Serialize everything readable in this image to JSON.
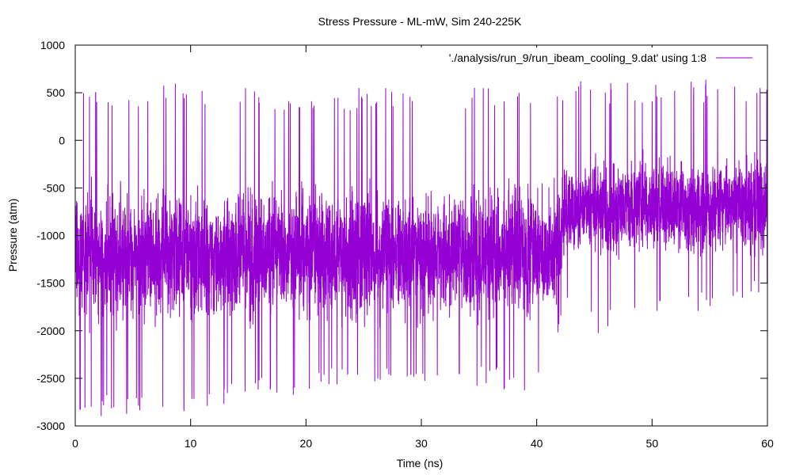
{
  "chart_data": {
    "type": "line",
    "title": "Stress Pressure - ML-mW, Sim 240-225K",
    "xlabel": "Time (ns)",
    "ylabel": "Pressure (atm)",
    "xlim": [
      0,
      60
    ],
    "ylim": [
      -3000,
      1000
    ],
    "x_ticks": [
      0,
      10,
      20,
      30,
      40,
      50,
      60
    ],
    "y_ticks": [
      -3000,
      -2500,
      -2000,
      -1500,
      -1000,
      -500,
      0,
      500,
      1000
    ],
    "grid": false,
    "legend_position": "top-right",
    "series": [
      {
        "name": "'./analysis/run_9/run_ibeam_cooling_9.dat' using 1:8",
        "color": "#9400d3",
        "x": [
          0,
          5,
          10,
          15,
          20,
          25,
          30,
          35,
          40,
          41.5,
          42.5,
          43.5,
          45,
          50,
          55,
          60
        ],
        "mean": [
          -1200,
          -1200,
          -1200,
          -1200,
          -1200,
          -1200,
          -1200,
          -1200,
          -1200,
          -1150,
          -900,
          -880,
          -880,
          -880,
          -880,
          -880
        ],
        "band_low": [
          -2050,
          -2050,
          -2050,
          -2050,
          -2050,
          -2050,
          -2050,
          -2050,
          -2000,
          -1950,
          -1400,
          -1350,
          -1320,
          -1320,
          -1320,
          -1320
        ],
        "band_high": [
          -350,
          -350,
          -350,
          -350,
          -350,
          -350,
          -350,
          -350,
          -350,
          -330,
          -150,
          -100,
          -80,
          -80,
          -80,
          -80
        ],
        "spike_max": [
          500,
          600,
          640,
          560,
          500,
          570,
          560,
          560,
          480,
          640,
          640,
          630,
          630,
          600,
          650,
          560
        ],
        "spike_min": [
          -2900,
          -2900,
          -2870,
          -2750,
          -2670,
          -2600,
          -2600,
          -2600,
          -2650,
          -2200,
          -1850,
          -1800,
          -2100,
          -1800,
          -1800,
          -1700
        ]
      }
    ]
  }
}
